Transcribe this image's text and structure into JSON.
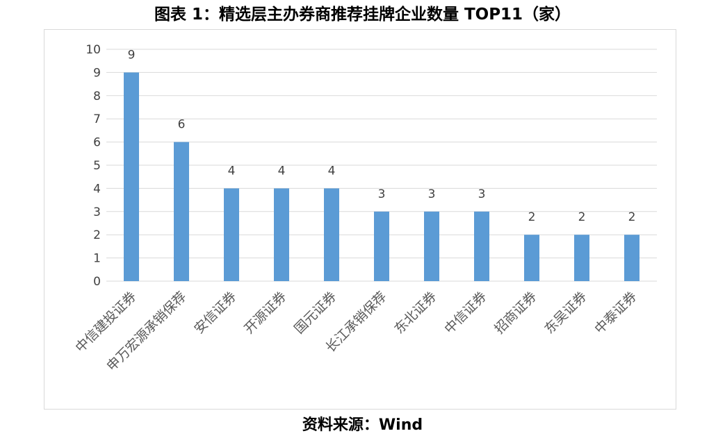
{
  "title": "图表 1：精选层主办券商推荐挂牌企业数量 TOP11（家）",
  "source": "资料来源：Wind",
  "chart_data": {
    "type": "bar",
    "categories": [
      "中信建投证券",
      "申万宏源承销保荐",
      "安信证券",
      "开源证券",
      "国元证券",
      "长江承销保荐",
      "东北证券",
      "中信证券",
      "招商证券",
      "东吴证券",
      "中泰证券"
    ],
    "values": [
      9,
      6,
      4,
      4,
      4,
      3,
      3,
      3,
      2,
      2,
      2
    ],
    "ylim": [
      0,
      10
    ],
    "yticks": [
      0,
      1,
      2,
      3,
      4,
      5,
      6,
      7,
      8,
      9,
      10
    ],
    "grid": true,
    "data_labels": true,
    "bar_color": "#5b9bd5",
    "grid_color": "#d9d9d9"
  }
}
